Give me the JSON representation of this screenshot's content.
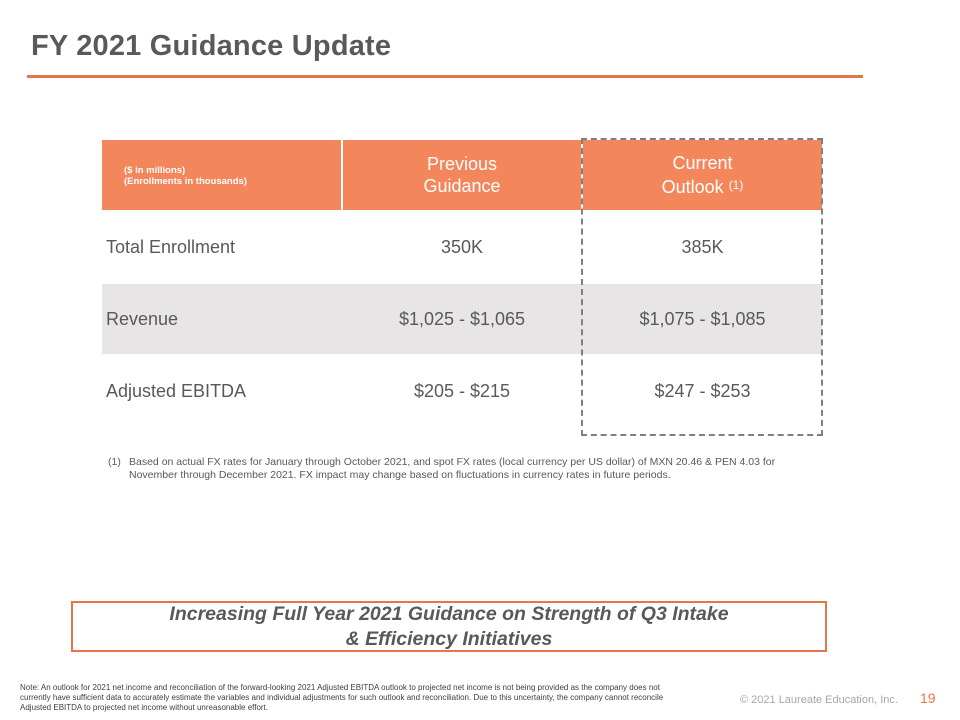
{
  "slide": {
    "title": "FY 2021 Guidance Update",
    "page_number": "19",
    "copyright": "© 2021 Laureate Education, Inc."
  },
  "table": {
    "units_line1": "($ in millions)",
    "units_line2": "(Enrollments in thousands)",
    "col_prev_line1": "Previous",
    "col_prev_line2": "Guidance",
    "col_curr_line1": "Current",
    "col_curr_line2": "Outlook",
    "col_curr_sup": "(1)",
    "rows": [
      {
        "label": "Total Enrollment",
        "previous": "350K",
        "current": "385K"
      },
      {
        "label": "Revenue",
        "previous": "$1,025 - $1,065",
        "current": "$1,075 - $1,085"
      },
      {
        "label": "Adjusted EBITDA",
        "previous": "$205 - $215",
        "current": "$247 - $253"
      }
    ]
  },
  "footnote": {
    "marker": "(1)",
    "text": "Based on actual FX rates for January through October 2021, and spot FX rates (local currency per US dollar) of MXN 20.46 & PEN 4.03 for November through December 2021. FX impact may change based on fluctuations in currency rates in future periods."
  },
  "callout": {
    "line1": "Increasing Full Year 2021 Guidance on Strength of Q3 Intake",
    "line2": "& Efficiency Initiatives"
  },
  "note": "Note: An outlook for 2021 net income and reconciliation of the forward-looking 2021 Adjusted EBITDA outlook to projected net income is not being provided as the company does not currently have sufficient data to accurately estimate the variables and individual adjustments for such outlook and reconciliation.  Due to this uncertainty, the company cannot reconcile Adjusted EBITDA to projected net income without unreasonable effort.",
  "colors": {
    "accent": "#e4774a",
    "header_fill": "#f4865c",
    "row_shade": "#e7e5e6",
    "text": "#595959"
  }
}
